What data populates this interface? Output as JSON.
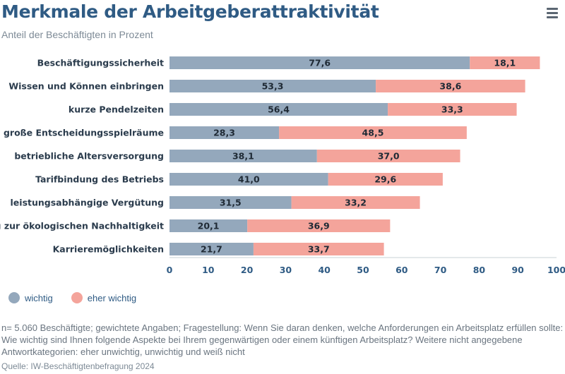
{
  "header": {
    "title": "Merkmale der Arbeitgeberattraktivität",
    "subtitle": "Anteil der Beschäftigten in Prozent"
  },
  "menu": {
    "icon": "hamburger-menu-icon"
  },
  "chart_data": {
    "type": "bar",
    "orientation": "horizontal",
    "stacked": true,
    "categories": [
      "Beschäftigungssicherheit",
      "Wissen und Können einbringen",
      "kurze Pendelzeiten",
      "große Entscheidungsspielräume",
      "betriebliche Altersversorgung",
      "Tarifbindung des Betriebs",
      "leistungsabhängige Vergütung",
      "Beitrag zur ökologischen Nachhaltigkeit",
      "Karrieremöglichkeiten"
    ],
    "series": [
      {
        "name": "wichtig",
        "color": "#94a8bc",
        "values": [
          77.6,
          53.3,
          56.4,
          28.3,
          38.1,
          41.0,
          31.5,
          20.1,
          21.7
        ],
        "labels": [
          "77,6",
          "53,3",
          "56,4",
          "28,3",
          "38,1",
          "41,0",
          "31,5",
          "20,1",
          "21,7"
        ]
      },
      {
        "name": "eher wichtig",
        "color": "#f4a49b",
        "values": [
          18.1,
          38.6,
          33.3,
          48.5,
          37.0,
          29.6,
          33.2,
          36.9,
          33.7
        ],
        "labels": [
          "18,1",
          "38,6",
          "33,3",
          "48,5",
          "37,0",
          "29,6",
          "33,2",
          "36,9",
          "33,7"
        ]
      }
    ],
    "xlim": [
      0,
      100
    ],
    "xticks": [
      0,
      10,
      20,
      30,
      40,
      50,
      60,
      70,
      80,
      90,
      100
    ],
    "grid": false,
    "legend_position": "bottom-left"
  },
  "legend": {
    "items": [
      {
        "label": "wichtig",
        "color": "#94a8bc"
      },
      {
        "label": "eher wichtig",
        "color": "#f4a49b"
      }
    ]
  },
  "footer": {
    "note": "n= 5.060 Beschäftigte; gewichtete Angaben; Fragestellung: Wenn Sie daran denken, welche Anforderungen ein Arbeitsplatz erfüllen sollte: Wie wichtig sind Ihnen folgende Aspekte bei Ihrem gegenwärtigen oder einem künftigen Arbeitsplatz? Weitere nicht angegebene Antwortkategorien: eher unwichtig, unwichtig und weiß nicht",
    "source": "Quelle: IW-Beschäftigtenbefragung 2024"
  }
}
